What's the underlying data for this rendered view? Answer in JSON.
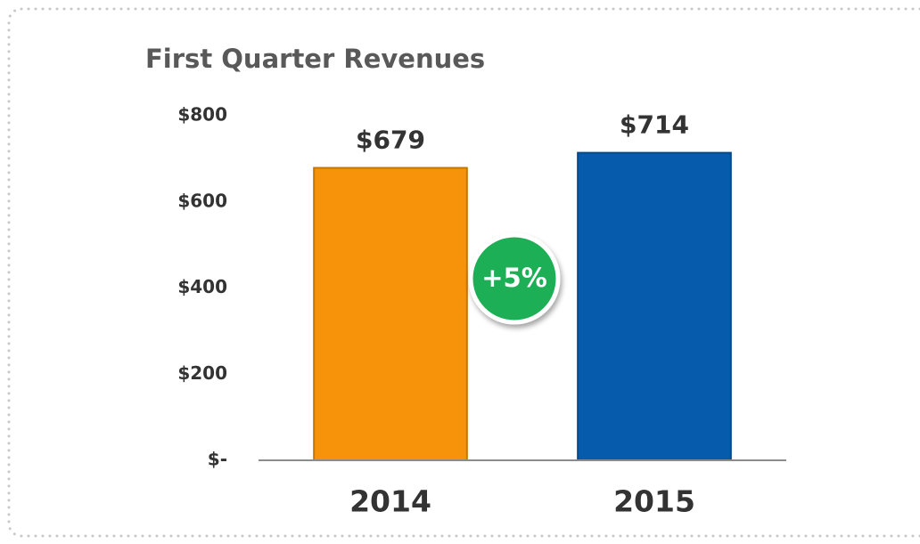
{
  "chart_data": {
    "type": "bar",
    "title": "First Quarter Revenues",
    "categories": [
      "2014",
      "2015"
    ],
    "values": [
      679,
      714
    ],
    "value_labels": [
      "$679",
      "$714"
    ],
    "colors": [
      "#f7930a",
      "#065bac"
    ],
    "ylim": [
      0,
      800
    ],
    "yticks": [
      {
        "value": 0,
        "label": "$-"
      },
      {
        "value": 200,
        "label": "$200"
      },
      {
        "value": 400,
        "label": "$400"
      },
      {
        "value": 600,
        "label": "$600"
      },
      {
        "value": 800,
        "label": "$800"
      }
    ],
    "annotations": [
      "+5%"
    ]
  }
}
